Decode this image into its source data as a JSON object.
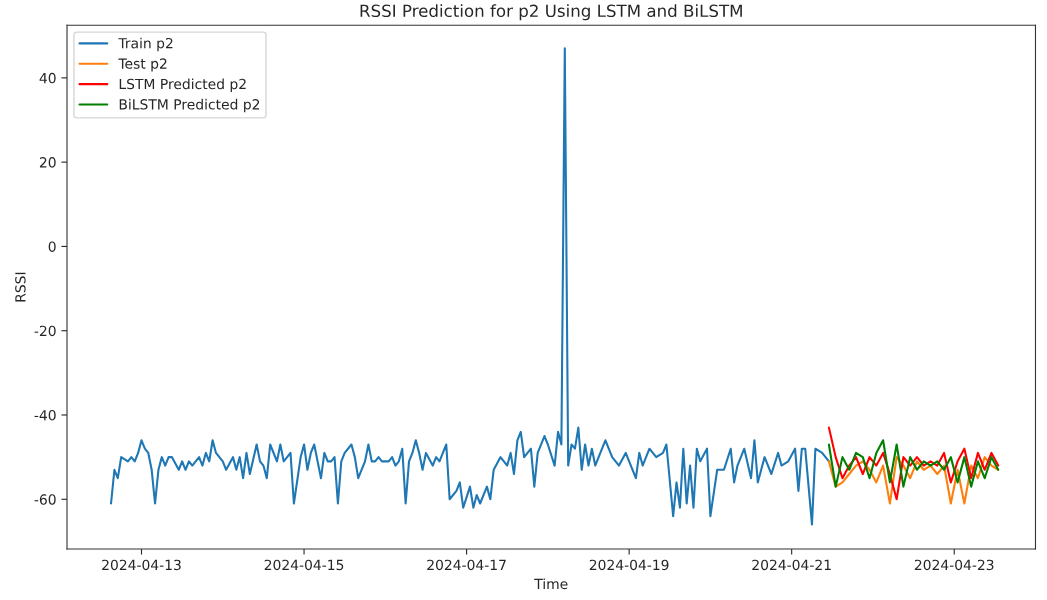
{
  "chart_data": {
    "type": "line",
    "title": "RSSI Prediction for p2 Using LSTM and BiLSTM",
    "xlabel": "Time",
    "ylabel": "RSSI",
    "xlim": [
      "2024-04-12T02:00",
      "2024-04-24T00:00"
    ],
    "ylim": [
      -71.8,
      52.5
    ],
    "xticks": [
      "2024-04-13",
      "2024-04-15",
      "2024-04-17",
      "2024-04-19",
      "2024-04-21",
      "2024-04-23"
    ],
    "yticks": [
      -60,
      -40,
      -20,
      0,
      20,
      40
    ],
    "grid": false,
    "legend": "top left",
    "marker": "none",
    "line_style": "solid",
    "series": [
      {
        "name": "Train p2",
        "color": "#1f77b4",
        "x": [
          "2024-04-12T15:00",
          "2024-04-12T16:00",
          "2024-04-12T17:00",
          "2024-04-12T18:00",
          "2024-04-12T20:00",
          "2024-04-12T21:00",
          "2024-04-12T22:00",
          "2024-04-12T23:00",
          "2024-04-13T00:00",
          "2024-04-13T01:00",
          "2024-04-13T02:00",
          "2024-04-13T03:00",
          "2024-04-13T04:00",
          "2024-04-13T05:00",
          "2024-04-13T06:00",
          "2024-04-13T07:00",
          "2024-04-13T08:00",
          "2024-04-13T09:00",
          "2024-04-13T11:00",
          "2024-04-13T12:00",
          "2024-04-13T13:00",
          "2024-04-13T14:00",
          "2024-04-13T15:00",
          "2024-04-13T17:00",
          "2024-04-13T18:00",
          "2024-04-13T19:00",
          "2024-04-13T20:00",
          "2024-04-13T21:00",
          "2024-04-13T22:00",
          "2024-04-14T00:00",
          "2024-04-14T01:00",
          "2024-04-14T03:00",
          "2024-04-14T04:00",
          "2024-04-14T05:00",
          "2024-04-14T06:00",
          "2024-04-14T07:00",
          "2024-04-14T08:00",
          "2024-04-14T10:00",
          "2024-04-14T11:00",
          "2024-04-14T12:00",
          "2024-04-14T13:00",
          "2024-04-14T14:00",
          "2024-04-14T16:00",
          "2024-04-14T17:00",
          "2024-04-14T18:00",
          "2024-04-14T20:00",
          "2024-04-14T21:00",
          "2024-04-14T23:00",
          "2024-04-15T00:00",
          "2024-04-15T01:00",
          "2024-04-15T02:00",
          "2024-04-15T03:00",
          "2024-04-15T05:00",
          "2024-04-15T06:00",
          "2024-04-15T07:00",
          "2024-04-15T08:00",
          "2024-04-15T09:00",
          "2024-04-15T10:00",
          "2024-04-15T11:00",
          "2024-04-15T12:00",
          "2024-04-15T14:00",
          "2024-04-15T15:00",
          "2024-04-15T16:00",
          "2024-04-15T18:00",
          "2024-04-15T19:00",
          "2024-04-15T20:00",
          "2024-04-15T21:00",
          "2024-04-15T22:00",
          "2024-04-15T23:00",
          "2024-04-16T01:00",
          "2024-04-16T02:00",
          "2024-04-16T03:00",
          "2024-04-16T04:00",
          "2024-04-16T05:00",
          "2024-04-16T06:00",
          "2024-04-16T07:00",
          "2024-04-16T08:00",
          "2024-04-16T09:00",
          "2024-04-16T10:00",
          "2024-04-16T11:00",
          "2024-04-16T12:00",
          "2024-04-16T14:00",
          "2024-04-16T15:00",
          "2024-04-16T16:00",
          "2024-04-16T17:00",
          "2024-04-16T18:00",
          "2024-04-16T19:00",
          "2024-04-16T21:00",
          "2024-04-16T22:00",
          "2024-04-16T23:00",
          "2024-04-17T01:00",
          "2024-04-17T02:00",
          "2024-04-17T03:00",
          "2024-04-17T04:00",
          "2024-04-17T06:00",
          "2024-04-17T07:00",
          "2024-04-17T08:00",
          "2024-04-17T10:00",
          "2024-04-17T12:00",
          "2024-04-17T13:00",
          "2024-04-17T14:00",
          "2024-04-17T15:00",
          "2024-04-17T16:00",
          "2024-04-17T17:00",
          "2024-04-17T19:00",
          "2024-04-17T20:00",
          "2024-04-17T21:00",
          "2024-04-17T23:00",
          "2024-04-18T00:00",
          "2024-04-18T02:00",
          "2024-04-18T03:00",
          "2024-04-18T04:00",
          "2024-04-18T05:00",
          "2024-04-18T06:00",
          "2024-04-18T07:00",
          "2024-04-18T08:00",
          "2024-04-18T09:00",
          "2024-04-18T10:00",
          "2024-04-18T11:00",
          "2024-04-18T12:00",
          "2024-04-18T13:00",
          "2024-04-18T14:00",
          "2024-04-18T16:00",
          "2024-04-18T17:00",
          "2024-04-18T19:00",
          "2024-04-18T21:00",
          "2024-04-18T23:00",
          "2024-04-19T00:00",
          "2024-04-19T02:00",
          "2024-04-19T03:00",
          "2024-04-19T04:00",
          "2024-04-19T06:00",
          "2024-04-19T08:00",
          "2024-04-19T10:00",
          "2024-04-19T11:00",
          "2024-04-19T13:00",
          "2024-04-19T14:00",
          "2024-04-19T15:00",
          "2024-04-19T16:00",
          "2024-04-19T17:00",
          "2024-04-19T18:00",
          "2024-04-19T19:00",
          "2024-04-19T20:00",
          "2024-04-19T21:00",
          "2024-04-19T23:00",
          "2024-04-20T00:00",
          "2024-04-20T02:00",
          "2024-04-20T04:00",
          "2024-04-20T06:00",
          "2024-04-20T07:00",
          "2024-04-20T08:00",
          "2024-04-20T10:00",
          "2024-04-20T12:00",
          "2024-04-20T13:00",
          "2024-04-20T14:00",
          "2024-04-20T16:00",
          "2024-04-20T18:00",
          "2024-04-20T20:00",
          "2024-04-20T21:00",
          "2024-04-20T23:00",
          "2024-04-21T01:00",
          "2024-04-21T02:00",
          "2024-04-21T03:00",
          "2024-04-21T04:00",
          "2024-04-21T06:00",
          "2024-04-21T07:00",
          "2024-04-21T09:00",
          "2024-04-21T11:00"
        ],
        "values": [
          -61,
          -53,
          -55,
          -50,
          -51,
          -50,
          -51,
          -49,
          -46,
          -48,
          -49,
          -53,
          -61,
          -53,
          -50,
          -52,
          -50,
          -50,
          -53,
          -51,
          -53,
          -51,
          -52,
          -50,
          -52,
          -49,
          -51,
          -46,
          -49,
          -51,
          -53,
          -50,
          -53,
          -50,
          -55,
          -49,
          -54,
          -47,
          -51,
          -52,
          -55,
          -47,
          -51,
          -47,
          -51,
          -49,
          -61,
          -50,
          -47,
          -53,
          -49,
          -47,
          -55,
          -49,
          -51,
          -51,
          -50,
          -61,
          -51,
          -49,
          -47,
          -50,
          -55,
          -51,
          -47,
          -51,
          -51,
          -50,
          -51,
          -51,
          -50,
          -52,
          -51,
          -48,
          -61,
          -51,
          -49,
          -46,
          -49,
          -53,
          -49,
          -52,
          -50,
          -51,
          -49,
          -47,
          -60,
          -58,
          -56,
          -62,
          -57,
          -62,
          -59,
          -61,
          -57,
          -60,
          -53,
          -50,
          -52,
          -49,
          -54,
          -46,
          -44,
          -50,
          -48,
          -57,
          -49,
          -45,
          -47,
          -52,
          -44,
          -47,
          47,
          -52,
          -47,
          -48,
          -43,
          -53,
          -47,
          -52,
          -48,
          -52,
          -48,
          -46,
          -50,
          -52,
          -49,
          -51,
          -55,
          -49,
          -52,
          -48,
          -50,
          -49,
          -47,
          -64,
          -56,
          -62,
          -48,
          -61,
          -52,
          -62,
          -48,
          -51,
          -48,
          -64,
          -53,
          -53,
          -48,
          -56,
          -52,
          -48,
          -55,
          -46,
          -56,
          -50,
          -54,
          -49,
          -52,
          -51,
          -48,
          -58,
          -48,
          -48,
          -66,
          -48,
          -49,
          -51
        ]
      },
      {
        "name": "Test p2",
        "color": "#ff7f0e",
        "x": [
          "2024-04-21T11:00",
          "2024-04-21T13:00",
          "2024-04-21T15:00",
          "2024-04-21T17:00",
          "2024-04-21T19:00",
          "2024-04-21T21:00",
          "2024-04-21T23:00",
          "2024-04-22T01:00",
          "2024-04-22T03:00",
          "2024-04-22T05:00",
          "2024-04-22T07:00",
          "2024-04-22T09:00",
          "2024-04-22T11:00",
          "2024-04-22T13:00",
          "2024-04-22T15:00",
          "2024-04-22T17:00",
          "2024-04-22T19:00",
          "2024-04-22T21:00",
          "2024-04-22T23:00",
          "2024-04-23T01:00",
          "2024-04-23T03:00",
          "2024-04-23T05:00",
          "2024-04-23T07:00",
          "2024-04-23T09:00",
          "2024-04-23T11:00",
          "2024-04-23T13:00"
        ],
        "values": [
          -51,
          -57,
          -56,
          -54,
          -52,
          -51,
          -53,
          -56,
          -52,
          -61,
          -50,
          -52,
          -55,
          -51,
          -53,
          -52,
          -54,
          -52,
          -61,
          -53,
          -61,
          -52,
          -55,
          -50,
          -52,
          -53
        ]
      },
      {
        "name": "LSTM Predicted p2",
        "color": "#ff0000",
        "x": [
          "2024-04-21T11:00",
          "2024-04-21T13:00",
          "2024-04-21T15:00",
          "2024-04-21T17:00",
          "2024-04-21T19:00",
          "2024-04-21T21:00",
          "2024-04-21T23:00",
          "2024-04-22T01:00",
          "2024-04-22T03:00",
          "2024-04-22T05:00",
          "2024-04-22T07:00",
          "2024-04-22T09:00",
          "2024-04-22T11:00",
          "2024-04-22T13:00",
          "2024-04-22T15:00",
          "2024-04-22T17:00",
          "2024-04-22T19:00",
          "2024-04-22T21:00",
          "2024-04-22T23:00",
          "2024-04-23T01:00",
          "2024-04-23T03:00",
          "2024-04-23T05:00",
          "2024-04-23T07:00",
          "2024-04-23T09:00",
          "2024-04-23T11:00",
          "2024-04-23T13:00"
        ],
        "values": [
          -43,
          -50,
          -55,
          -52,
          -50,
          -54,
          -50,
          -52,
          -49,
          -54,
          -60,
          -50,
          -52,
          -50,
          -52,
          -51,
          -52,
          -49,
          -56,
          -51,
          -48,
          -55,
          -49,
          -53,
          -49,
          -52
        ]
      },
      {
        "name": "BiLSTM Predicted p2",
        "color": "#008000",
        "x": [
          "2024-04-21T11:00",
          "2024-04-21T13:00",
          "2024-04-21T15:00",
          "2024-04-21T17:00",
          "2024-04-21T19:00",
          "2024-04-21T21:00",
          "2024-04-21T23:00",
          "2024-04-22T01:00",
          "2024-04-22T03:00",
          "2024-04-22T05:00",
          "2024-04-22T07:00",
          "2024-04-22T09:00",
          "2024-04-22T11:00",
          "2024-04-22T13:00",
          "2024-04-22T15:00",
          "2024-04-22T17:00",
          "2024-04-22T19:00",
          "2024-04-22T21:00",
          "2024-04-22T23:00",
          "2024-04-23T01:00",
          "2024-04-23T03:00",
          "2024-04-23T05:00",
          "2024-04-23T07:00",
          "2024-04-23T09:00",
          "2024-04-23T11:00",
          "2024-04-23T13:00"
        ],
        "values": [
          -47,
          -57,
          -50,
          -53,
          -49,
          -50,
          -55,
          -49,
          -46,
          -56,
          -47,
          -57,
          -50,
          -53,
          -51,
          -52,
          -51,
          -53,
          -50,
          -56,
          -50,
          -57,
          -51,
          -55,
          -50,
          -53
        ]
      }
    ]
  }
}
